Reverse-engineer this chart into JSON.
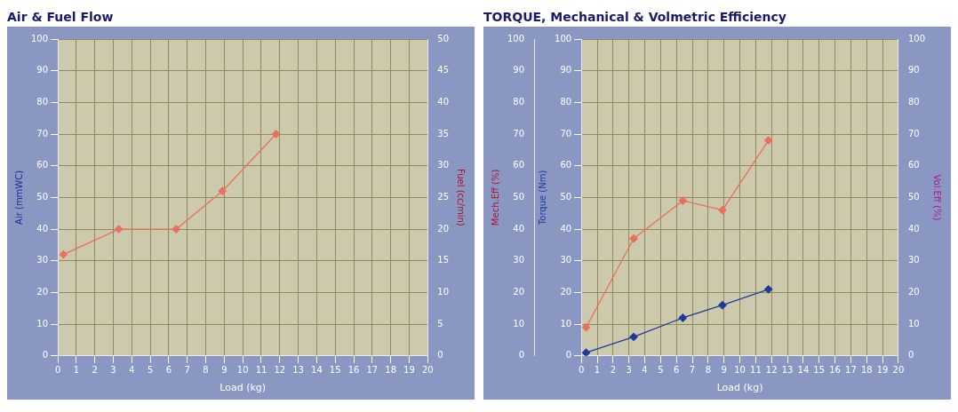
{
  "chart_data": [
    {
      "type": "line",
      "title": "Air &  Fuel Flow",
      "xlabel": "Load (kg)",
      "ylabel": "Air (mmWC)",
      "y2label": "Fuel (cc/min)",
      "xlim": [
        0,
        20
      ],
      "xticks": [
        0,
        1,
        2,
        3,
        4,
        5,
        6,
        7,
        8,
        9,
        10,
        11,
        12,
        13,
        14,
        15,
        16,
        17,
        18,
        19,
        20
      ],
      "ylim": [
        0,
        100
      ],
      "yticks": [
        0,
        10,
        20,
        30,
        40,
        50,
        60,
        70,
        80,
        90,
        100
      ],
      "y2lim": [
        0,
        50
      ],
      "y2ticks": [
        0,
        5,
        10,
        15,
        20,
        25,
        30,
        35,
        40,
        45,
        50
      ],
      "grid": true,
      "legend": false,
      "marker": "diamond",
      "line_style": "solid",
      "series": [
        {
          "color": "#e8705c",
          "axis": "y2",
          "x": [
            0.3,
            3.3,
            6.4,
            8.9,
            11.8
          ],
          "values": [
            16,
            20,
            20,
            26,
            35
          ]
        }
      ]
    },
    {
      "type": "line",
      "title": "TORQUE, Mechanical & Volmetric Efficiency",
      "xlabel": "Load (kg)",
      "ylabel": "Torque (Nm)",
      "y2label": "Vol.Eff (%)",
      "y3label": "Mech.Eff (%)",
      "xlim": [
        0,
        20
      ],
      "xticks": [
        0,
        1,
        2,
        3,
        4,
        5,
        6,
        7,
        8,
        9,
        10,
        11,
        12,
        13,
        14,
        15,
        16,
        17,
        18,
        19,
        20
      ],
      "ylim": [
        0,
        100
      ],
      "yticks": [
        0,
        10,
        20,
        30,
        40,
        50,
        60,
        70,
        80,
        90,
        100
      ],
      "y2lim": [
        0,
        100
      ],
      "y2ticks": [
        0,
        10,
        20,
        30,
        40,
        50,
        60,
        70,
        80,
        90,
        100
      ],
      "y3lim": [
        0,
        100
      ],
      "y3ticks": [
        0,
        10,
        20,
        30,
        40,
        50,
        60,
        70,
        80,
        90,
        100
      ],
      "grid": true,
      "legend": false,
      "marker": "diamond",
      "line_style": "solid",
      "series": [
        {
          "color": "#e8705c",
          "axis": "y3",
          "x": [
            0.3,
            3.3,
            6.4,
            8.9,
            11.8
          ],
          "values": [
            9,
            37,
            49,
            46,
            68
          ]
        },
        {
          "color": "#1f3a9a",
          "axis": "y",
          "x": [
            0.3,
            3.3,
            6.4,
            8.9,
            11.8
          ],
          "values": [
            1,
            6,
            12,
            16,
            21
          ]
        }
      ]
    }
  ]
}
